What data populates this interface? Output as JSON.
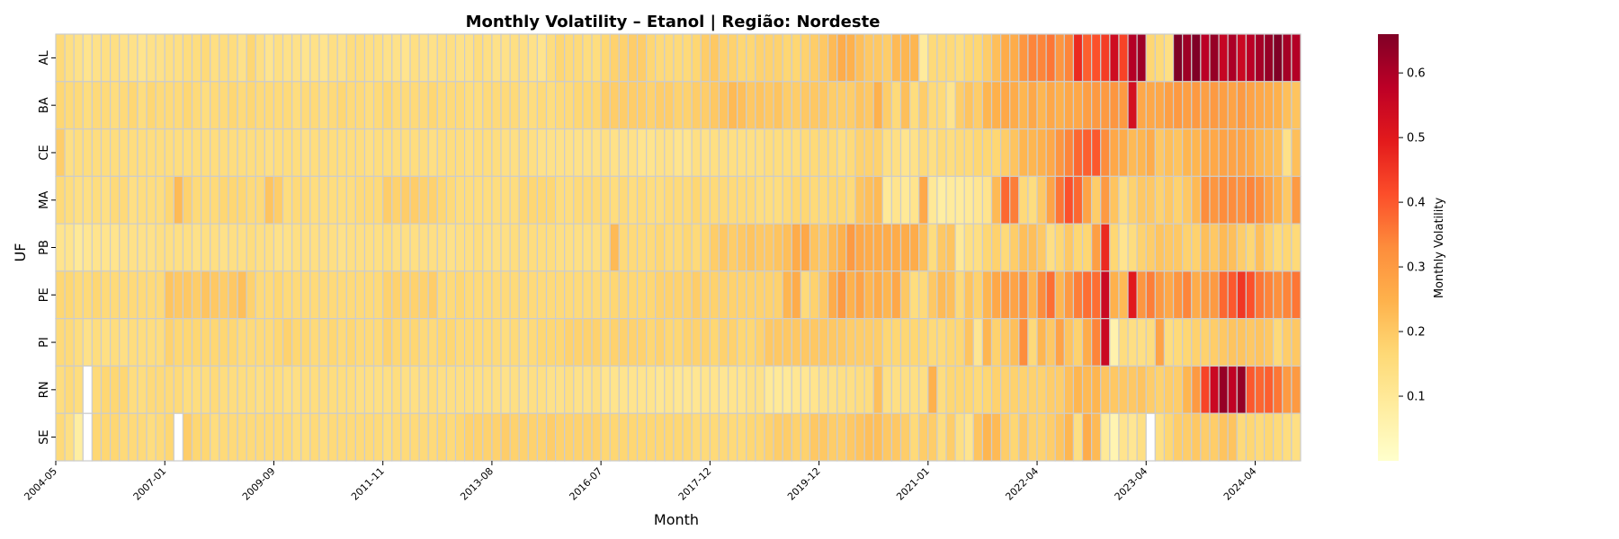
{
  "chart_data": {
    "type": "heatmap",
    "title": "Monthly Volatility – Etanol | Região: Nordeste",
    "xlabel": "Month",
    "ylabel": "UF",
    "rows": [
      "AL",
      "BA",
      "CE",
      "MA",
      "PB",
      "PE",
      "PI",
      "RN",
      "SE"
    ],
    "x_tick_labels": [
      "2004-05",
      "2007-01",
      "2009-09",
      "2011-11",
      "2013-08",
      "2016-07",
      "2017-12",
      "2019-12",
      "2021-01",
      "2022-04",
      "2023-04",
      "2024-04"
    ],
    "x_tick_columns": [
      0,
      12,
      24,
      36,
      48,
      60,
      72,
      84,
      96,
      108,
      120,
      132
    ],
    "columns": 137,
    "colorbar": {
      "label": "Monthly Volatility",
      "ticks": [
        0.1,
        0.2,
        0.3,
        0.4,
        0.5,
        0.6
      ],
      "vmin": 0.0,
      "vmax": 0.66
    },
    "colorscale": [
      "#ffffcc",
      "#ffeda0",
      "#fed976",
      "#feb24c",
      "#fd8d3c",
      "#fc4e2a",
      "#e31a1c",
      "#bd0026",
      "#800026"
    ],
    "grid_color": "#cccccc",
    "values": [
      [
        0.16,
        0.14,
        0.13,
        0.12,
        0.13,
        0.14,
        0.14,
        0.13,
        0.13,
        0.12,
        0.13,
        0.13,
        0.14,
        0.14,
        0.15,
        0.15,
        0.16,
        0.14,
        0.15,
        0.15,
        0.13,
        0.17,
        0.14,
        0.12,
        0.14,
        0.13,
        0.13,
        0.12,
        0.13,
        0.12,
        0.14,
        0.13,
        0.15,
        0.15,
        0.14,
        0.14,
        0.13,
        0.13,
        0.12,
        0.14,
        0.13,
        0.13,
        0.14,
        0.14,
        0.13,
        0.13,
        0.15,
        0.14,
        0.13,
        0.13,
        0.14,
        0.14,
        0.13,
        0.12,
        0.15,
        0.17,
        0.16,
        0.16,
        0.15,
        0.15,
        0.17,
        0.18,
        0.18,
        0.19,
        0.19,
        0.17,
        0.16,
        0.16,
        0.16,
        0.16,
        0.17,
        0.19,
        0.2,
        0.18,
        0.18,
        0.17,
        0.17,
        0.18,
        0.18,
        0.18,
        0.17,
        0.17,
        0.18,
        0.19,
        0.2,
        0.23,
        0.26,
        0.25,
        0.22,
        0.2,
        0.2,
        0.19,
        0.23,
        0.24,
        0.24,
        0.09,
        0.16,
        0.16,
        0.16,
        0.15,
        0.17,
        0.17,
        0.19,
        0.22,
        0.26,
        0.26,
        0.31,
        0.34,
        0.34,
        0.36,
        0.31,
        0.34,
        0.47,
        0.39,
        0.41,
        0.44,
        0.54,
        0.43,
        0.59,
        0.62,
        0.17,
        0.16,
        0.14,
        0.66,
        0.62,
        0.66,
        0.58,
        0.63,
        0.56,
        0.6,
        0.55,
        0.58,
        0.61,
        0.63,
        0.66,
        0.61,
        0.59,
        0.38
      ],
      [
        0.17,
        0.16,
        0.16,
        0.15,
        0.16,
        0.16,
        0.15,
        0.16,
        0.17,
        0.15,
        0.17,
        0.16,
        0.16,
        0.16,
        0.17,
        0.16,
        0.15,
        0.16,
        0.16,
        0.17,
        0.16,
        0.17,
        0.16,
        0.16,
        0.16,
        0.16,
        0.15,
        0.16,
        0.16,
        0.15,
        0.16,
        0.17,
        0.16,
        0.16,
        0.15,
        0.16,
        0.17,
        0.16,
        0.16,
        0.16,
        0.16,
        0.17,
        0.16,
        0.16,
        0.16,
        0.15,
        0.15,
        0.16,
        0.16,
        0.16,
        0.16,
        0.15,
        0.15,
        0.16,
        0.15,
        0.16,
        0.16,
        0.17,
        0.17,
        0.17,
        0.19,
        0.19,
        0.19,
        0.19,
        0.19,
        0.18,
        0.19,
        0.19,
        0.18,
        0.18,
        0.19,
        0.19,
        0.2,
        0.21,
        0.23,
        0.22,
        0.2,
        0.21,
        0.2,
        0.21,
        0.19,
        0.19,
        0.2,
        0.2,
        0.2,
        0.19,
        0.19,
        0.19,
        0.21,
        0.2,
        0.25,
        0.19,
        0.16,
        0.22,
        0.15,
        0.19,
        0.16,
        0.16,
        0.12,
        0.19,
        0.21,
        0.19,
        0.24,
        0.25,
        0.27,
        0.26,
        0.24,
        0.27,
        0.24,
        0.27,
        0.25,
        0.27,
        0.27,
        0.29,
        0.3,
        0.3,
        0.31,
        0.3,
        0.53,
        0.27,
        0.27,
        0.27,
        0.29,
        0.3,
        0.29,
        0.3,
        0.29,
        0.3,
        0.29,
        0.28,
        0.3,
        0.28,
        0.27,
        0.26,
        0.25,
        0.22,
        0.21
      ],
      [
        0.19,
        0.14,
        0.15,
        0.15,
        0.15,
        0.15,
        0.15,
        0.15,
        0.15,
        0.15,
        0.15,
        0.15,
        0.15,
        0.15,
        0.15,
        0.15,
        0.15,
        0.15,
        0.15,
        0.15,
        0.15,
        0.15,
        0.15,
        0.14,
        0.15,
        0.15,
        0.15,
        0.14,
        0.15,
        0.15,
        0.15,
        0.15,
        0.15,
        0.15,
        0.14,
        0.15,
        0.15,
        0.15,
        0.15,
        0.15,
        0.15,
        0.14,
        0.15,
        0.15,
        0.15,
        0.14,
        0.15,
        0.15,
        0.15,
        0.14,
        0.14,
        0.15,
        0.14,
        0.13,
        0.13,
        0.13,
        0.13,
        0.13,
        0.13,
        0.13,
        0.14,
        0.13,
        0.13,
        0.13,
        0.12,
        0.12,
        0.13,
        0.13,
        0.12,
        0.12,
        0.14,
        0.13,
        0.14,
        0.14,
        0.14,
        0.14,
        0.14,
        0.14,
        0.15,
        0.15,
        0.15,
        0.15,
        0.16,
        0.16,
        0.16,
        0.16,
        0.15,
        0.16,
        0.18,
        0.18,
        0.18,
        0.14,
        0.14,
        0.12,
        0.13,
        0.16,
        0.14,
        0.16,
        0.15,
        0.16,
        0.16,
        0.17,
        0.17,
        0.17,
        0.19,
        0.21,
        0.24,
        0.24,
        0.25,
        0.27,
        0.31,
        0.34,
        0.38,
        0.39,
        0.4,
        0.33,
        0.27,
        0.26,
        0.23,
        0.24,
        0.26,
        0.2,
        0.22,
        0.21,
        0.24,
        0.24,
        0.27,
        0.27,
        0.28,
        0.28,
        0.28,
        0.27,
        0.24,
        0.23,
        0.22,
        0.13,
        0.22
      ],
      [
        0.16,
        0.15,
        0.14,
        0.14,
        0.15,
        0.14,
        0.16,
        0.16,
        0.14,
        0.15,
        0.15,
        0.15,
        0.17,
        0.23,
        0.18,
        0.16,
        0.16,
        0.16,
        0.17,
        0.17,
        0.17,
        0.16,
        0.16,
        0.21,
        0.19,
        0.15,
        0.16,
        0.16,
        0.15,
        0.15,
        0.15,
        0.15,
        0.15,
        0.16,
        0.16,
        0.16,
        0.19,
        0.18,
        0.19,
        0.19,
        0.18,
        0.18,
        0.17,
        0.16,
        0.15,
        0.15,
        0.15,
        0.15,
        0.15,
        0.15,
        0.15,
        0.17,
        0.17,
        0.17,
        0.17,
        0.15,
        0.15,
        0.16,
        0.16,
        0.16,
        0.16,
        0.15,
        0.16,
        0.15,
        0.16,
        0.15,
        0.15,
        0.16,
        0.16,
        0.16,
        0.17,
        0.16,
        0.16,
        0.16,
        0.16,
        0.16,
        0.16,
        0.15,
        0.15,
        0.15,
        0.16,
        0.17,
        0.17,
        0.16,
        0.16,
        0.17,
        0.17,
        0.16,
        0.21,
        0.22,
        0.23,
        0.1,
        0.12,
        0.1,
        0.12,
        0.27,
        0.1,
        0.08,
        0.09,
        0.09,
        0.1,
        0.11,
        0.12,
        0.23,
        0.38,
        0.35,
        0.16,
        0.15,
        0.2,
        0.28,
        0.36,
        0.41,
        0.38,
        0.28,
        0.19,
        0.3,
        0.21,
        0.15,
        0.18,
        0.2,
        0.2,
        0.18,
        0.2,
        0.18,
        0.2,
        0.23,
        0.33,
        0.31,
        0.33,
        0.33,
        0.32,
        0.34,
        0.32,
        0.28,
        0.25,
        0.2,
        0.3
      ],
      [
        0.12,
        0.12,
        0.1,
        0.11,
        0.12,
        0.12,
        0.12,
        0.13,
        0.13,
        0.13,
        0.13,
        0.14,
        0.14,
        0.14,
        0.14,
        0.13,
        0.14,
        0.14,
        0.13,
        0.14,
        0.14,
        0.15,
        0.14,
        0.14,
        0.13,
        0.13,
        0.14,
        0.14,
        0.14,
        0.14,
        0.14,
        0.13,
        0.14,
        0.14,
        0.14,
        0.14,
        0.15,
        0.14,
        0.14,
        0.14,
        0.14,
        0.14,
        0.14,
        0.13,
        0.14,
        0.14,
        0.15,
        0.14,
        0.14,
        0.14,
        0.15,
        0.15,
        0.15,
        0.15,
        0.15,
        0.14,
        0.14,
        0.14,
        0.14,
        0.14,
        0.15,
        0.23,
        0.16,
        0.16,
        0.16,
        0.16,
        0.17,
        0.16,
        0.16,
        0.17,
        0.16,
        0.17,
        0.19,
        0.2,
        0.19,
        0.2,
        0.21,
        0.2,
        0.2,
        0.21,
        0.22,
        0.26,
        0.27,
        0.21,
        0.2,
        0.23,
        0.25,
        0.3,
        0.27,
        0.26,
        0.26,
        0.26,
        0.26,
        0.26,
        0.26,
        0.22,
        0.15,
        0.2,
        0.21,
        0.1,
        0.14,
        0.14,
        0.17,
        0.18,
        0.16,
        0.19,
        0.22,
        0.22,
        0.2,
        0.14,
        0.17,
        0.2,
        0.17,
        0.17,
        0.29,
        0.47,
        0.17,
        0.12,
        0.15,
        0.18,
        0.19,
        0.21,
        0.2,
        0.2,
        0.18,
        0.18,
        0.22,
        0.2,
        0.23,
        0.22,
        0.19,
        0.17,
        0.22,
        0.18,
        0.16,
        0.17,
        0.16
      ],
      [
        0.17,
        0.17,
        0.16,
        0.16,
        0.17,
        0.16,
        0.16,
        0.16,
        0.16,
        0.16,
        0.16,
        0.16,
        0.21,
        0.2,
        0.2,
        0.19,
        0.21,
        0.2,
        0.19,
        0.2,
        0.22,
        0.18,
        0.16,
        0.16,
        0.17,
        0.16,
        0.16,
        0.16,
        0.16,
        0.16,
        0.16,
        0.16,
        0.16,
        0.16,
        0.16,
        0.16,
        0.18,
        0.18,
        0.18,
        0.18,
        0.18,
        0.19,
        0.16,
        0.16,
        0.17,
        0.16,
        0.16,
        0.16,
        0.16,
        0.16,
        0.16,
        0.16,
        0.16,
        0.16,
        0.16,
        0.16,
        0.16,
        0.16,
        0.16,
        0.16,
        0.16,
        0.17,
        0.17,
        0.17,
        0.17,
        0.17,
        0.18,
        0.18,
        0.18,
        0.18,
        0.19,
        0.18,
        0.18,
        0.18,
        0.18,
        0.18,
        0.18,
        0.18,
        0.18,
        0.18,
        0.24,
        0.26,
        0.16,
        0.18,
        0.2,
        0.26,
        0.3,
        0.25,
        0.28,
        0.24,
        0.26,
        0.24,
        0.27,
        0.2,
        0.15,
        0.16,
        0.2,
        0.23,
        0.22,
        0.16,
        0.21,
        0.18,
        0.24,
        0.27,
        0.3,
        0.28,
        0.32,
        0.24,
        0.33,
        0.37,
        0.24,
        0.3,
        0.35,
        0.37,
        0.37,
        0.55,
        0.25,
        0.23,
        0.5,
        0.31,
        0.35,
        0.3,
        0.27,
        0.31,
        0.34,
        0.26,
        0.3,
        0.3,
        0.38,
        0.4,
        0.45,
        0.41,
        0.36,
        0.34,
        0.32,
        0.34,
        0.36
      ],
      [
        0.16,
        0.16,
        0.15,
        0.13,
        0.15,
        0.14,
        0.15,
        0.14,
        0.15,
        0.15,
        0.15,
        0.15,
        0.18,
        0.17,
        0.17,
        0.17,
        0.17,
        0.17,
        0.17,
        0.17,
        0.16,
        0.16,
        0.16,
        0.16,
        0.17,
        0.18,
        0.17,
        0.17,
        0.16,
        0.16,
        0.17,
        0.16,
        0.17,
        0.16,
        0.16,
        0.16,
        0.18,
        0.17,
        0.17,
        0.17,
        0.16,
        0.16,
        0.17,
        0.17,
        0.16,
        0.16,
        0.16,
        0.16,
        0.16,
        0.15,
        0.16,
        0.15,
        0.16,
        0.17,
        0.17,
        0.17,
        0.18,
        0.18,
        0.18,
        0.18,
        0.17,
        0.18,
        0.18,
        0.18,
        0.18,
        0.17,
        0.18,
        0.17,
        0.17,
        0.18,
        0.18,
        0.18,
        0.17,
        0.18,
        0.18,
        0.17,
        0.17,
        0.18,
        0.2,
        0.2,
        0.2,
        0.2,
        0.2,
        0.2,
        0.2,
        0.2,
        0.2,
        0.19,
        0.19,
        0.19,
        0.19,
        0.17,
        0.17,
        0.17,
        0.17,
        0.17,
        0.16,
        0.16,
        0.17,
        0.17,
        0.21,
        0.11,
        0.24,
        0.18,
        0.2,
        0.22,
        0.33,
        0.16,
        0.24,
        0.2,
        0.28,
        0.21,
        0.18,
        0.26,
        0.34,
        0.55,
        0.06,
        0.15,
        0.14,
        0.14,
        0.15,
        0.28,
        0.15,
        0.16,
        0.17,
        0.18,
        0.18,
        0.19,
        0.2,
        0.21,
        0.21,
        0.2,
        0.21,
        0.2,
        0.16,
        0.19,
        0.2
      ],
      [
        0.15,
        0.16,
        0.15,
        null,
        0.16,
        0.17,
        0.17,
        0.17,
        0.15,
        0.15,
        0.16,
        0.16,
        0.16,
        0.16,
        0.15,
        0.15,
        0.15,
        0.16,
        0.15,
        0.15,
        0.15,
        0.15,
        0.14,
        0.15,
        0.15,
        0.14,
        0.14,
        0.15,
        0.15,
        0.15,
        0.15,
        0.15,
        0.15,
        0.14,
        0.14,
        0.14,
        0.14,
        0.15,
        0.14,
        0.14,
        0.14,
        0.15,
        0.14,
        0.14,
        0.14,
        0.14,
        0.14,
        0.14,
        0.14,
        0.13,
        0.14,
        0.13,
        0.14,
        0.14,
        0.13,
        0.13,
        0.14,
        0.13,
        0.13,
        0.14,
        0.12,
        0.12,
        0.12,
        0.12,
        0.12,
        0.12,
        0.11,
        0.12,
        0.11,
        0.11,
        0.11,
        0.12,
        0.12,
        0.11,
        0.12,
        0.12,
        0.13,
        0.13,
        0.1,
        0.1,
        0.1,
        0.11,
        0.11,
        0.12,
        0.13,
        0.13,
        0.14,
        0.14,
        0.15,
        0.15,
        0.22,
        0.14,
        0.14,
        0.14,
        0.14,
        0.14,
        0.25,
        0.15,
        0.17,
        0.17,
        0.17,
        0.16,
        0.17,
        0.18,
        0.18,
        0.18,
        0.18,
        0.18,
        0.18,
        0.19,
        0.19,
        0.22,
        0.24,
        0.23,
        0.24,
        0.21,
        0.2,
        0.2,
        0.2,
        0.21,
        0.19,
        0.18,
        0.19,
        0.19,
        0.24,
        0.3,
        0.43,
        0.55,
        0.63,
        0.57,
        0.63,
        0.4,
        0.38,
        0.39,
        0.36,
        0.3,
        0.3
      ],
      [
        0.16,
        0.14,
        0.08,
        null,
        0.17,
        0.17,
        0.17,
        0.16,
        0.16,
        0.16,
        0.15,
        0.16,
        0.17,
        null,
        0.19,
        0.17,
        0.17,
        0.15,
        0.16,
        0.16,
        0.16,
        0.16,
        0.16,
        0.16,
        0.16,
        0.16,
        0.15,
        0.15,
        0.16,
        0.15,
        0.16,
        0.16,
        0.16,
        0.16,
        0.16,
        0.16,
        0.15,
        0.16,
        0.16,
        0.16,
        0.16,
        0.16,
        0.17,
        0.16,
        0.17,
        0.18,
        0.18,
        0.18,
        0.18,
        0.19,
        0.18,
        0.18,
        0.18,
        0.18,
        0.19,
        0.18,
        0.18,
        0.18,
        0.18,
        0.18,
        0.17,
        0.17,
        0.17,
        0.17,
        0.17,
        0.17,
        0.17,
        0.17,
        0.17,
        0.17,
        0.16,
        0.16,
        0.16,
        0.16,
        0.16,
        0.16,
        0.17,
        0.17,
        0.18,
        0.19,
        0.19,
        0.18,
        0.18,
        0.2,
        0.2,
        0.19,
        0.19,
        0.2,
        0.21,
        0.22,
        0.22,
        0.2,
        0.2,
        0.19,
        0.16,
        0.19,
        0.19,
        0.15,
        0.19,
        0.14,
        0.12,
        0.21,
        0.24,
        0.23,
        0.19,
        0.17,
        0.2,
        0.18,
        0.18,
        0.19,
        0.21,
        0.24,
        0.14,
        0.26,
        0.23,
        0.1,
        0.05,
        0.12,
        0.11,
        0.14,
        null,
        0.14,
        0.17,
        0.19,
        0.19,
        0.2,
        0.19,
        0.19,
        0.21,
        0.21,
        0.16,
        0.17,
        0.16,
        0.17,
        0.16,
        0.15,
        0.14
      ]
    ]
  }
}
